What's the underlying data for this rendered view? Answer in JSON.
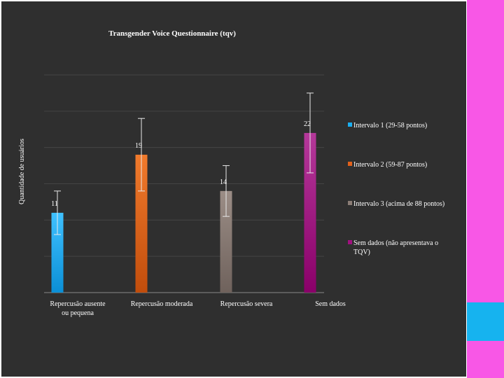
{
  "chart_data": {
    "type": "bar",
    "title": "Transgender Voice Questionnaire (tqv)",
    "xlabel": "",
    "ylabel": "Quantidade de usuários",
    "ylim": [
      0,
      30
    ],
    "gridline_step": 5,
    "categories": [
      [
        "Repercusão ausente",
        "ou pequena"
      ],
      [
        "Repercusão moderada"
      ],
      [
        "Repercusão severa"
      ],
      [
        "Sem dados"
      ]
    ],
    "series": [
      {
        "name": "Intervalo 1 (29-58 pontos)",
        "color": "#1aaef0",
        "values": [
          11,
          0,
          0,
          0
        ],
        "error_low": [
          8,
          null,
          null,
          null
        ],
        "error_high": [
          14,
          null,
          null,
          null
        ]
      },
      {
        "name": "Intervalo 2 (59-87 pontos)",
        "color": "#e2611b",
        "values": [
          0,
          19,
          0,
          0
        ],
        "error_low": [
          null,
          14,
          null,
          null
        ],
        "error_high": [
          null,
          24,
          null,
          null
        ]
      },
      {
        "name": "Intervalo 3 (acima de 88 pontos)",
        "color": "#8a7c76",
        "values": [
          0,
          0,
          14,
          0
        ],
        "error_low": [
          null,
          null,
          10.5,
          null
        ],
        "error_high": [
          null,
          null,
          17.5,
          null
        ]
      },
      {
        "name": [
          "Sem dados (não apresentava o",
          "TQV)"
        ],
        "color": "#a0107f",
        "values": [
          0,
          0,
          0,
          22
        ],
        "error_low": [
          null,
          null,
          null,
          16.5
        ],
        "error_high": [
          null,
          null,
          null,
          27.5
        ]
      }
    ],
    "data_labels": [
      "11",
      "19",
      "14",
      "22"
    ],
    "legend_position": "right",
    "grid": true
  },
  "colors": {
    "background": "#2f2f2f",
    "text": "#ffffff",
    "gridline": "#454545",
    "accent_pink": "#f857e6",
    "accent_blue": "#16b3ef"
  }
}
